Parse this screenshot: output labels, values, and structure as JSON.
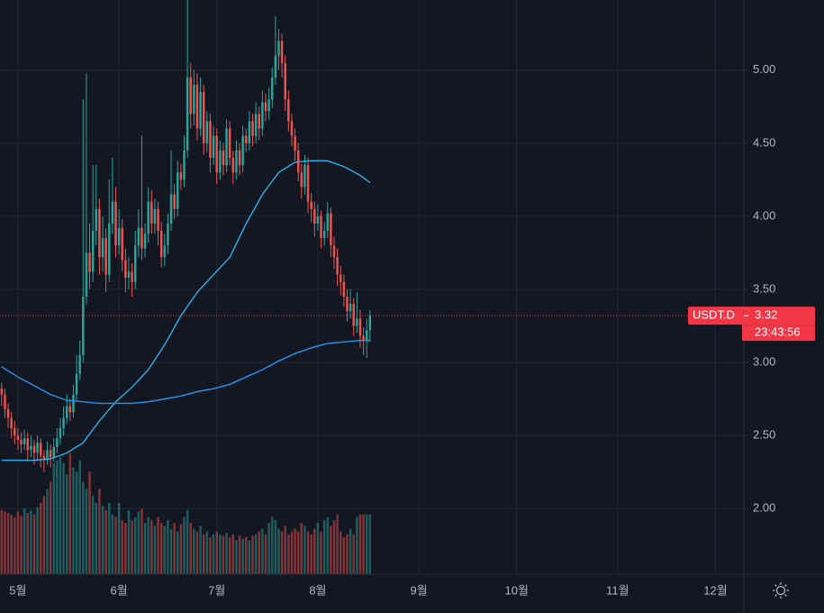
{
  "chart_data": {
    "type": "candlestick",
    "up_color": "#26a69a",
    "down_color": "#ef5350",
    "grid": true,
    "xlim": [
      -5.5,
      222.7
    ],
    "ylim": [
      1.55,
      5.48
    ],
    "yticks": [
      {
        "value": 2,
        "label": "2.00"
      },
      {
        "value": 2.5,
        "label": "2.50"
      },
      {
        "value": 3,
        "label": "3.00"
      },
      {
        "value": 3.5,
        "label": "3.50"
      },
      {
        "value": 4,
        "label": "4.00"
      },
      {
        "value": 4.5,
        "label": "4.50"
      },
      {
        "value": 5,
        "label": "5.00"
      }
    ],
    "xticks": [
      {
        "value": 0,
        "label": "5월"
      },
      {
        "value": 31,
        "label": "6월"
      },
      {
        "value": 61,
        "label": "7월"
      },
      {
        "value": 92,
        "label": "8월"
      },
      {
        "value": 123,
        "label": "9월"
      },
      {
        "value": 153,
        "label": "10월"
      },
      {
        "value": 184,
        "label": "11월"
      },
      {
        "value": 214,
        "label": "12월"
      }
    ],
    "x": [
      -5,
      -4,
      -3,
      -2,
      -1,
      0,
      1,
      2,
      3,
      4,
      5,
      6,
      7,
      8,
      9,
      10,
      11,
      12,
      13,
      14,
      15,
      16,
      17,
      18,
      19,
      20,
      21,
      22,
      23,
      24,
      25,
      26,
      27,
      28,
      29,
      30,
      31,
      32,
      33,
      34,
      35,
      36,
      37,
      38,
      39,
      40,
      41,
      42,
      43,
      44,
      45,
      46,
      47,
      48,
      49,
      50,
      51,
      52,
      53,
      54,
      55,
      56,
      57,
      58,
      59,
      60,
      61,
      62,
      63,
      64,
      65,
      66,
      67,
      68,
      69,
      70,
      71,
      72,
      73,
      74,
      75,
      76,
      77,
      78,
      79,
      80,
      81,
      82,
      83,
      84,
      85,
      86,
      87,
      88,
      89,
      90,
      91,
      92,
      93,
      94,
      95,
      96,
      97,
      98,
      99,
      100,
      101,
      102,
      103,
      104,
      105,
      106,
      107,
      108
    ],
    "candles": [
      [
        2.82,
        2.86,
        2.7,
        2.78
      ],
      [
        2.78,
        2.82,
        2.62,
        2.68
      ],
      [
        2.68,
        2.72,
        2.55,
        2.62
      ],
      [
        2.62,
        2.66,
        2.48,
        2.55
      ],
      [
        2.55,
        2.6,
        2.44,
        2.5
      ],
      [
        2.5,
        2.55,
        2.4,
        2.47
      ],
      [
        2.47,
        2.52,
        2.38,
        2.44
      ],
      [
        2.44,
        2.54,
        2.4,
        2.48
      ],
      [
        2.48,
        2.52,
        2.33,
        2.4
      ],
      [
        2.4,
        2.5,
        2.35,
        2.43
      ],
      [
        2.43,
        2.47,
        2.3,
        2.38
      ],
      [
        2.38,
        2.5,
        2.33,
        2.45
      ],
      [
        2.45,
        2.48,
        2.28,
        2.36
      ],
      [
        2.36,
        2.4,
        2.25,
        2.33
      ],
      [
        2.33,
        2.46,
        2.3,
        2.4
      ],
      [
        2.4,
        2.44,
        2.28,
        2.35
      ],
      [
        2.35,
        2.48,
        2.32,
        2.42
      ],
      [
        2.42,
        2.55,
        2.38,
        2.48
      ],
      [
        2.48,
        2.62,
        2.44,
        2.55
      ],
      [
        2.55,
        2.7,
        2.5,
        2.62
      ],
      [
        2.62,
        2.78,
        2.58,
        2.7
      ],
      [
        2.7,
        2.75,
        2.6,
        2.66
      ],
      [
        2.66,
        2.85,
        2.62,
        2.78
      ],
      [
        2.78,
        3.05,
        2.74,
        2.92
      ],
      [
        2.92,
        3.15,
        2.88,
        3.05
      ],
      [
        3.05,
        4.8,
        3.0,
        3.45
      ],
      [
        3.45,
        4.98,
        3.4,
        3.75
      ],
      [
        3.75,
        3.95,
        3.5,
        3.62
      ],
      [
        3.62,
        4.35,
        3.55,
        3.9
      ],
      [
        3.9,
        4.35,
        3.8,
        4.05
      ],
      [
        4.05,
        4.12,
        3.6,
        3.72
      ],
      [
        3.72,
        4.0,
        3.62,
        3.85
      ],
      [
        3.85,
        3.92,
        3.48,
        3.6
      ],
      [
        3.6,
        4.25,
        3.55,
        3.95
      ],
      [
        3.95,
        4.4,
        3.88,
        4.1
      ],
      [
        4.1,
        4.2,
        3.72,
        3.8
      ],
      [
        3.8,
        4.05,
        3.74,
        3.92
      ],
      [
        3.92,
        3.98,
        3.62,
        3.7
      ],
      [
        3.7,
        3.78,
        3.48,
        3.58
      ],
      [
        3.58,
        3.72,
        3.5,
        3.62
      ],
      [
        3.62,
        3.68,
        3.45,
        3.55
      ],
      [
        3.55,
        3.9,
        3.5,
        3.8
      ],
      [
        3.8,
        4.05,
        3.72,
        3.92
      ],
      [
        3.92,
        4.55,
        3.7,
        3.78
      ],
      [
        3.78,
        3.95,
        3.72,
        3.88
      ],
      [
        3.88,
        4.2,
        3.82,
        4.1
      ],
      [
        4.1,
        4.18,
        3.88,
        3.95
      ],
      [
        3.95,
        4.12,
        3.88,
        4.05
      ],
      [
        4.05,
        4.1,
        3.8,
        3.9
      ],
      [
        3.9,
        3.96,
        3.65,
        3.72
      ],
      [
        3.72,
        3.88,
        3.66,
        3.8
      ],
      [
        3.8,
        4.02,
        3.74,
        3.95
      ],
      [
        3.95,
        4.45,
        3.9,
        4.15
      ],
      [
        4.15,
        4.22,
        3.98,
        4.05
      ],
      [
        4.05,
        4.38,
        4.0,
        4.3
      ],
      [
        4.3,
        4.36,
        4.18,
        4.25
      ],
      [
        4.25,
        4.55,
        4.2,
        4.45
      ],
      [
        4.45,
        5.48,
        4.4,
        4.95
      ],
      [
        4.95,
        5.05,
        4.6,
        4.7
      ],
      [
        4.7,
        5.0,
        4.62,
        4.9
      ],
      [
        4.9,
        4.98,
        4.52,
        4.6
      ],
      [
        4.6,
        4.95,
        4.55,
        4.85
      ],
      [
        4.85,
        4.9,
        4.42,
        4.5
      ],
      [
        4.5,
        4.72,
        4.44,
        4.65
      ],
      [
        4.65,
        4.7,
        4.3,
        4.4
      ],
      [
        4.4,
        4.62,
        4.35,
        4.55
      ],
      [
        4.55,
        4.6,
        4.22,
        4.3
      ],
      [
        4.3,
        4.52,
        4.25,
        4.45
      ],
      [
        4.45,
        4.5,
        4.28,
        4.35
      ],
      [
        4.35,
        4.66,
        4.3,
        4.6
      ],
      [
        4.6,
        4.65,
        4.35,
        4.4
      ],
      [
        4.4,
        4.45,
        4.22,
        4.3
      ],
      [
        4.3,
        4.52,
        4.25,
        4.45
      ],
      [
        4.45,
        4.5,
        4.28,
        4.35
      ],
      [
        4.35,
        4.62,
        4.3,
        4.55
      ],
      [
        4.55,
        4.6,
        4.44,
        4.5
      ],
      [
        4.5,
        4.72,
        4.45,
        4.65
      ],
      [
        4.65,
        4.7,
        4.48,
        4.55
      ],
      [
        4.55,
        4.78,
        4.5,
        4.7
      ],
      [
        4.7,
        4.75,
        4.52,
        4.6
      ],
      [
        4.6,
        4.86,
        4.55,
        4.78
      ],
      [
        4.78,
        4.84,
        4.65,
        4.72
      ],
      [
        4.72,
        4.88,
        4.66,
        4.8
      ],
      [
        4.8,
        5.02,
        4.74,
        4.95
      ],
      [
        4.95,
        5.37,
        4.9,
        5.1
      ],
      [
        5.1,
        5.28,
        5.0,
        5.2
      ],
      [
        5.2,
        5.25,
        4.95,
        5.05
      ],
      [
        5.05,
        5.1,
        4.72,
        4.8
      ],
      [
        4.8,
        4.86,
        4.58,
        4.65
      ],
      [
        4.65,
        4.7,
        4.48,
        4.55
      ],
      [
        4.55,
        4.6,
        4.38,
        4.45
      ],
      [
        4.45,
        4.5,
        4.24,
        4.3
      ],
      [
        4.3,
        4.36,
        4.12,
        4.2
      ],
      [
        4.2,
        4.42,
        4.15,
        4.35
      ],
      [
        4.35,
        4.4,
        4.02,
        4.1
      ],
      [
        4.1,
        4.16,
        3.96,
        4.05
      ],
      [
        4.05,
        4.1,
        3.86,
        3.95
      ],
      [
        3.95,
        4.08,
        3.9,
        4.0
      ],
      [
        4.0,
        4.04,
        3.78,
        3.85
      ],
      [
        3.85,
        3.96,
        3.8,
        3.9
      ],
      [
        3.9,
        4.1,
        3.85,
        4.02
      ],
      [
        4.02,
        4.06,
        3.72,
        3.8
      ],
      [
        3.8,
        3.86,
        3.64,
        3.72
      ],
      [
        3.72,
        3.78,
        3.52,
        3.6
      ],
      [
        3.6,
        3.66,
        3.46,
        3.55
      ],
      [
        3.55,
        3.6,
        3.38,
        3.45
      ],
      [
        3.45,
        3.5,
        3.28,
        3.35
      ],
      [
        3.35,
        3.5,
        3.3,
        3.4
      ],
      [
        3.4,
        3.44,
        3.18,
        3.25
      ],
      [
        3.25,
        3.48,
        3.2,
        3.3
      ],
      [
        3.3,
        3.36,
        3.1,
        3.18
      ],
      [
        3.18,
        3.24,
        3.05,
        3.15
      ],
      [
        3.15,
        3.3,
        3.03,
        3.22
      ],
      [
        3.22,
        3.36,
        3.14,
        3.32
      ]
    ],
    "volume": [
      45,
      44,
      43,
      42,
      40,
      44,
      41,
      46,
      43,
      45,
      42,
      47,
      50,
      55,
      60,
      65,
      78,
      80,
      82,
      78,
      70,
      85,
      75,
      72,
      80,
      65,
      60,
      72,
      55,
      50,
      60,
      48,
      45,
      50,
      42,
      40,
      50,
      38,
      36,
      45,
      38,
      40,
      44,
      46,
      36,
      40,
      38,
      34,
      40,
      36,
      34,
      38,
      32,
      36,
      30,
      35,
      40,
      45,
      36,
      32,
      30,
      34,
      28,
      30,
      26,
      28,
      30,
      28,
      27,
      29,
      26,
      28,
      24,
      27,
      25,
      26,
      24,
      27,
      28,
      30,
      32,
      28,
      36,
      40,
      38,
      32,
      30,
      34,
      28,
      30,
      32,
      30,
      36,
      34,
      30,
      28,
      32,
      36,
      30,
      38,
      40,
      34,
      38,
      42,
      30,
      26,
      28,
      32,
      28,
      40,
      42,
      42,
      42,
      42
    ],
    "ma": [
      {
        "color": "#2ab0e8",
        "x": [
          -5,
          0,
          5,
          10,
          15,
          20,
          25,
          30,
          35,
          40,
          45,
          50,
          55,
          60,
          65,
          70,
          75,
          80,
          85,
          90,
          95,
          100,
          105,
          108
        ],
        "values": [
          2.33,
          2.33,
          2.33,
          2.34,
          2.38,
          2.45,
          2.6,
          2.73,
          2.83,
          2.95,
          3.12,
          3.32,
          3.48,
          3.6,
          3.72,
          3.95,
          4.15,
          4.3,
          4.37,
          4.38,
          4.38,
          4.34,
          4.28,
          4.23
        ]
      },
      {
        "color": "#2196f3",
        "x": [
          -5,
          0,
          5,
          10,
          15,
          20,
          25,
          30,
          35,
          40,
          45,
          50,
          55,
          60,
          65,
          70,
          75,
          80,
          85,
          90,
          95,
          100,
          105,
          108
        ],
        "values": [
          2.97,
          2.9,
          2.84,
          2.78,
          2.74,
          2.73,
          2.72,
          2.72,
          2.72,
          2.73,
          2.75,
          2.77,
          2.8,
          2.82,
          2.85,
          2.9,
          2.95,
          3.01,
          3.06,
          3.1,
          3.13,
          3.14,
          3.15,
          3.15
        ]
      }
    ],
    "price_label": {
      "symbol": "USDT.D",
      "value": 3.32,
      "countdown": "23:43:56",
      "color": "#f23645"
    }
  }
}
